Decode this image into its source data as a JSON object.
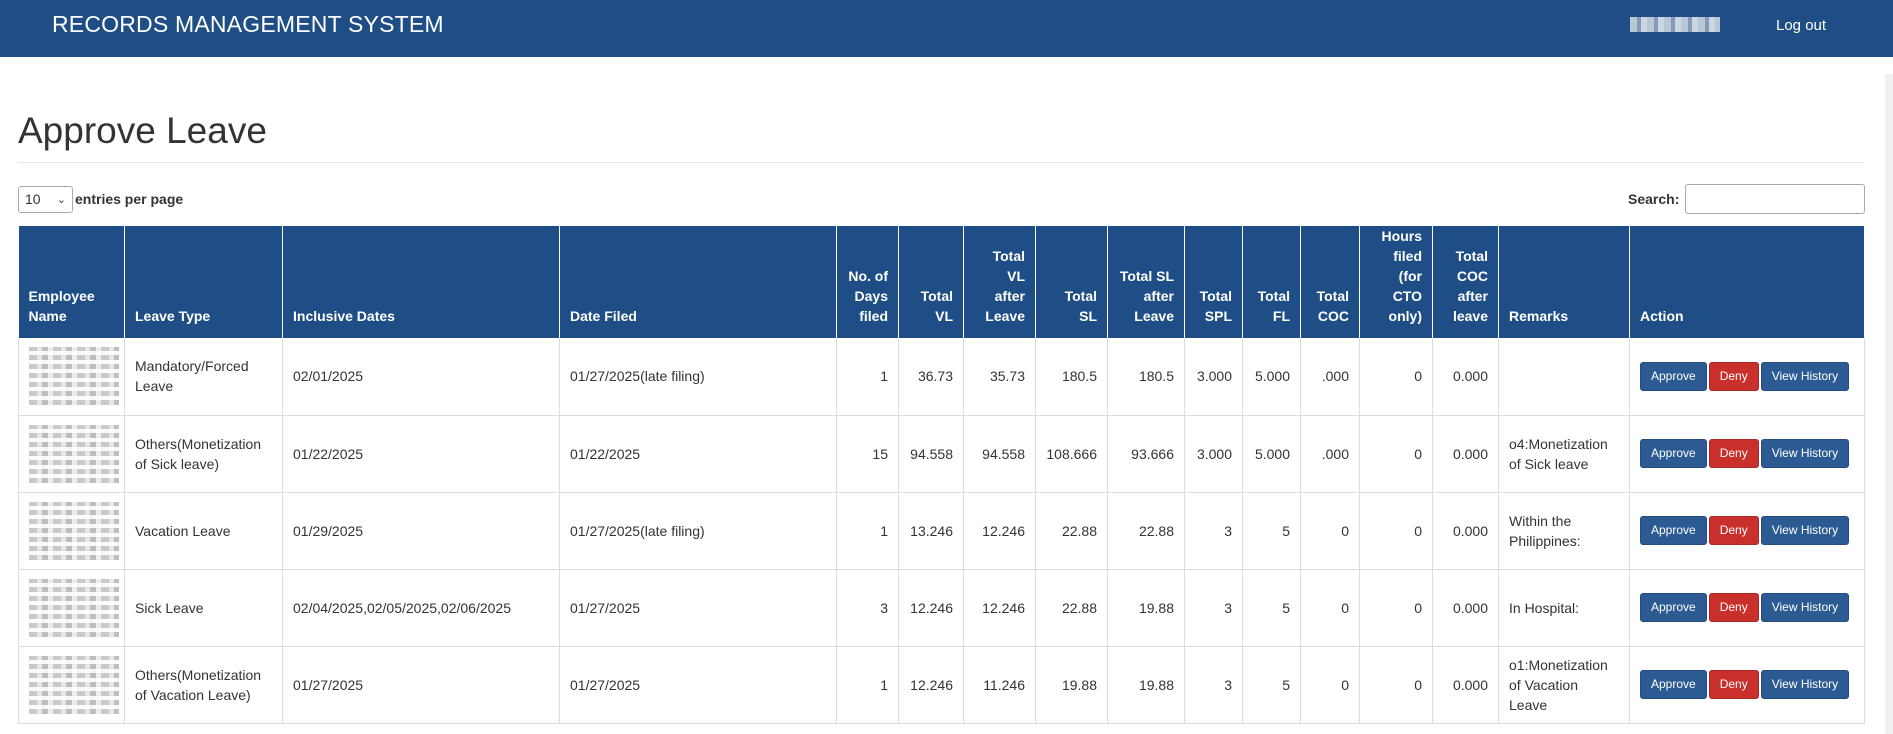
{
  "header": {
    "app_title": "RECORDS MANAGEMENT SYSTEM",
    "logout_label": "Log out"
  },
  "page": {
    "title": "Approve Leave"
  },
  "controls": {
    "entries_value": "10",
    "entries_label": "entries per page",
    "search_label": "Search:",
    "search_value": ""
  },
  "table": {
    "columns": [
      [
        "Employee",
        "Name"
      ],
      [
        "Leave Type"
      ],
      [
        "Inclusive Dates"
      ],
      [
        "Date Filed"
      ],
      [
        "No. of",
        "Days",
        "filed"
      ],
      [
        "Total",
        "VL"
      ],
      [
        "Total",
        "VL",
        "after",
        "Leave"
      ],
      [
        "Total",
        "SL"
      ],
      [
        "Total SL",
        "after",
        "Leave"
      ],
      [
        "Total",
        "SPL"
      ],
      [
        "Total",
        "FL"
      ],
      [
        "Total",
        "COC"
      ],
      [
        "Hours",
        "filed",
        "(for",
        "CTO",
        "only)"
      ],
      [
        "Total",
        "COC",
        "after",
        "leave"
      ],
      [
        "Remarks"
      ],
      [
        "Action"
      ]
    ],
    "actions": {
      "approve": "Approve",
      "deny": "Deny",
      "history": "View History"
    },
    "rows": [
      {
        "leave_type": "Mandatory/Forced Leave",
        "dates": "02/01/2025",
        "filed": "01/27/2025(late filing)",
        "days": "1",
        "vl": "36.73",
        "vl_after": "35.73",
        "sl": "180.5",
        "sl_after": "180.5",
        "spl": "3.000",
        "fl": "5.000",
        "coc": ".000",
        "hours": "0",
        "coc_after": "0.000",
        "remarks": ""
      },
      {
        "leave_type": "Others(Monetization of Sick leave)",
        "dates": "01/22/2025",
        "filed": "01/22/2025",
        "days": "15",
        "vl": "94.558",
        "vl_after": "94.558",
        "sl": "108.666",
        "sl_after": "93.666",
        "spl": "3.000",
        "fl": "5.000",
        "coc": ".000",
        "hours": "0",
        "coc_after": "0.000",
        "remarks": "o4:Monetization of Sick leave"
      },
      {
        "leave_type": "Vacation Leave",
        "dates": "01/29/2025",
        "filed": "01/27/2025(late filing)",
        "days": "1",
        "vl": "13.246",
        "vl_after": "12.246",
        "sl": "22.88",
        "sl_after": "22.88",
        "spl": "3",
        "fl": "5",
        "coc": "0",
        "hours": "0",
        "coc_after": "0.000",
        "remarks": "Within the Philippines:"
      },
      {
        "leave_type": "Sick Leave",
        "dates": "02/04/2025,02/05/2025,02/06/2025",
        "filed": "01/27/2025",
        "days": "3",
        "vl": "12.246",
        "vl_after": "12.246",
        "sl": "22.88",
        "sl_after": "19.88",
        "spl": "3",
        "fl": "5",
        "coc": "0",
        "hours": "0",
        "coc_after": "0.000",
        "remarks": "In Hospital:"
      },
      {
        "leave_type": "Others(Monetization of Vacation Leave)",
        "dates": "01/27/2025",
        "filed": "01/27/2025",
        "days": "1",
        "vl": "12.246",
        "vl_after": "11.246",
        "sl": "19.88",
        "sl_after": "19.88",
        "spl": "3",
        "fl": "5",
        "coc": "0",
        "hours": "0",
        "coc_after": "0.000",
        "remarks": "o1:Monetization of Vacation Leave"
      }
    ]
  }
}
